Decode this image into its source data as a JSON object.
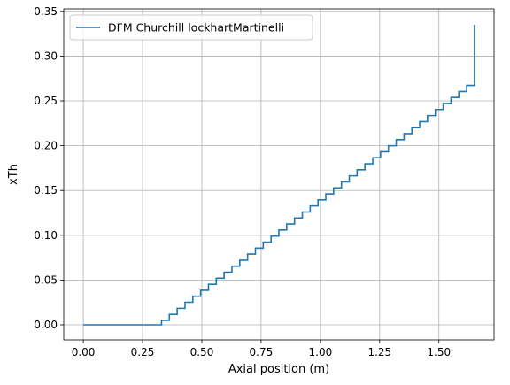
{
  "chart_data": {
    "type": "line",
    "title": "",
    "xlabel": "Axial position (m)",
    "ylabel": "xTh",
    "xlim": [
      -0.0825,
      1.7325
    ],
    "ylim": [
      -0.0168,
      0.3528
    ],
    "xticks": [
      0.0,
      0.25,
      0.5,
      0.75,
      1.0,
      1.25,
      1.5
    ],
    "xtick_labels": [
      "0.00",
      "0.25",
      "0.50",
      "0.75",
      "1.00",
      "1.25",
      "1.50"
    ],
    "yticks": [
      0.0,
      0.05,
      0.1,
      0.15,
      0.2,
      0.25,
      0.3,
      0.35
    ],
    "ytick_labels": [
      "0.00",
      "0.05",
      "0.10",
      "0.15",
      "0.20",
      "0.25",
      "0.30",
      "0.35"
    ],
    "grid": true,
    "legend_position": "top-left",
    "series": [
      {
        "name": "DFM Churchill lockhartMartinelli",
        "color": "#1f77b4",
        "style": "step",
        "x": [
          0,
          0.33,
          0.363,
          0.396,
          0.429,
          0.462,
          0.495,
          0.528,
          0.561,
          0.594,
          0.627,
          0.66,
          0.693,
          0.726,
          0.759,
          0.792,
          0.825,
          0.858,
          0.891,
          0.924,
          0.957,
          0.99,
          1.023,
          1.056,
          1.089,
          1.122,
          1.155,
          1.188,
          1.221,
          1.254,
          1.287,
          1.32,
          1.353,
          1.386,
          1.419,
          1.452,
          1.485,
          1.518,
          1.551,
          1.584,
          1.617,
          1.65
        ],
        "y": [
          0,
          0.005,
          0.0117,
          0.0184,
          0.0252,
          0.0319,
          0.0386,
          0.0453,
          0.0521,
          0.0588,
          0.0655,
          0.0722,
          0.079,
          0.0857,
          0.0924,
          0.0991,
          0.1059,
          0.1126,
          0.1193,
          0.126,
          0.1328,
          0.1395,
          0.1462,
          0.1529,
          0.1597,
          0.1664,
          0.1731,
          0.1798,
          0.1866,
          0.1933,
          0.2,
          0.2067,
          0.2135,
          0.2202,
          0.2269,
          0.2336,
          0.2404,
          0.2471,
          0.2538,
          0.2605,
          0.2673,
          0.335
        ]
      }
    ]
  }
}
